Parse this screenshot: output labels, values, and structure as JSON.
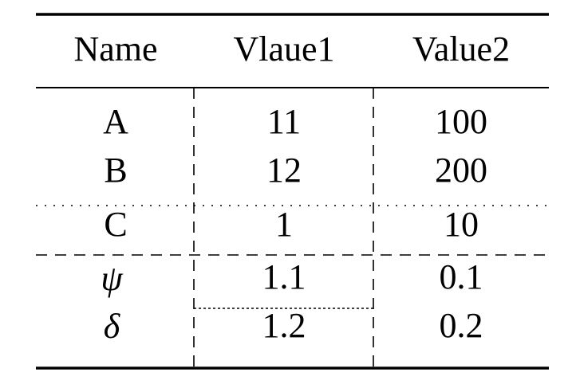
{
  "table": {
    "header": [
      "Name",
      "Vlaue1",
      "Value2"
    ],
    "rows": [
      [
        "A",
        "11",
        "100"
      ],
      [
        "B",
        "12",
        "200"
      ],
      [
        "C",
        "1",
        "10"
      ],
      [
        "ψ",
        "1.1",
        "0.1"
      ],
      [
        "δ",
        "1.2",
        "0.2"
      ]
    ]
  }
}
